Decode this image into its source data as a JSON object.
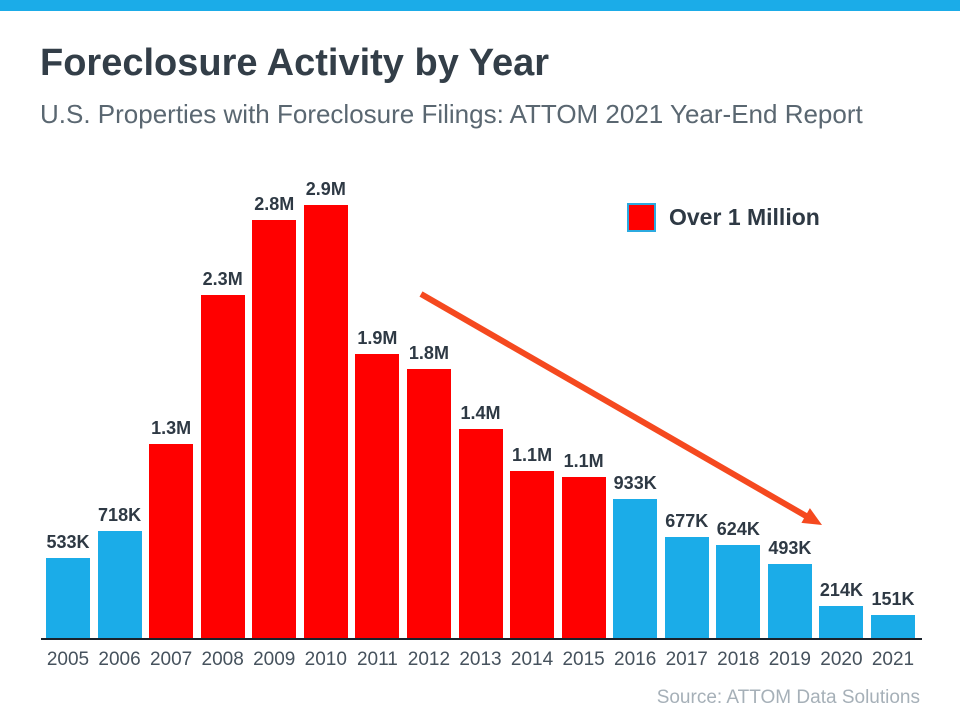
{
  "header": {
    "title": "Foreclosure Activity by Year",
    "subtitle": "U.S. Properties with Foreclosure Filings: ATTOM 2021 Year-End Report"
  },
  "footer": {
    "source": "Source: ATTOM Data Solutions"
  },
  "theme": {
    "accent_blue": "#1bace8",
    "bar_red": "#ff0000",
    "arrow_orange": "#f5491f",
    "legend_swatch_border": "#2baae0",
    "title_color": "#333e48",
    "axis_color": "#1a222b"
  },
  "chart_data": {
    "type": "bar",
    "title": "Foreclosure Activity by Year",
    "subtitle": "U.S. Properties with Foreclosure Filings: ATTOM 2021 Year-End Report",
    "categories": [
      "2005",
      "2006",
      "2007",
      "2008",
      "2009",
      "2010",
      "2011",
      "2012",
      "2013",
      "2014",
      "2015",
      "2016",
      "2017",
      "2018",
      "2019",
      "2020",
      "2021"
    ],
    "values": [
      533000,
      718000,
      1300000,
      2300000,
      2800000,
      2900000,
      1900000,
      1800000,
      1400000,
      1120000,
      1080000,
      933000,
      677000,
      624000,
      493000,
      214000,
      151000
    ],
    "value_labels": [
      "533K",
      "718K",
      "1.3M",
      "2.3M",
      "2.8M",
      "2.9M",
      "1.9M",
      "1.8M",
      "1.4M",
      "1.1M",
      "1.1M",
      "933K",
      "677K",
      "624K",
      "493K",
      "214K",
      "151K"
    ],
    "xlabel": "",
    "ylabel": "",
    "ylim": [
      0,
      2900000
    ],
    "grid": false,
    "legend": {
      "label": "Over 1 Million",
      "threshold": 1000000,
      "color_over": "#ff0000",
      "color_under": "#1bace8",
      "position": "top-right"
    },
    "annotations": [
      {
        "type": "arrow",
        "meaning": "declining trend in foreclosure filings 2011-2019",
        "color": "#f5491f"
      }
    ]
  }
}
